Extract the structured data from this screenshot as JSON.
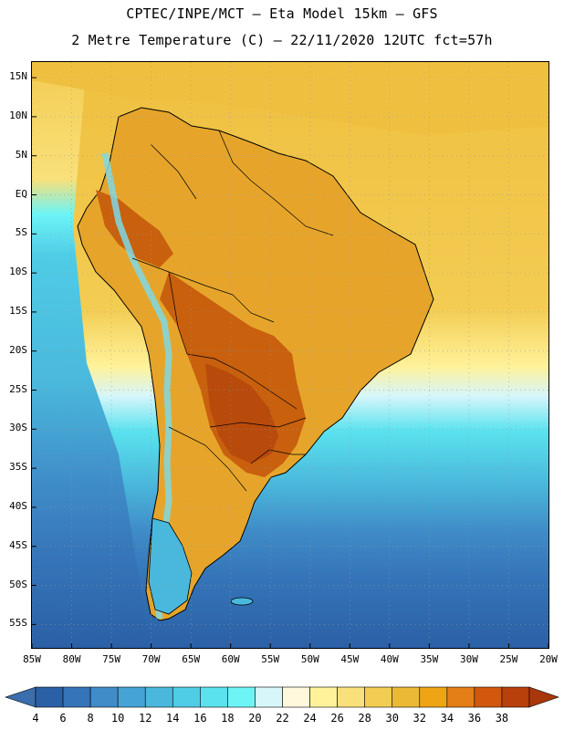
{
  "header": {
    "line1": "CPTEC/INPE/MCT –  Eta Model 15km – GFS",
    "line2": "2 Metre Temperature (C) – 22/11/2020 12UTC fct=57h"
  },
  "map": {
    "lon_range": [
      -85,
      -20
    ],
    "lat_range": [
      -58,
      17
    ],
    "lat_labels": [
      "15N",
      "10N",
      "5N",
      "EQ",
      "5S",
      "10S",
      "15S",
      "20S",
      "25S",
      "30S",
      "35S",
      "40S",
      "45S",
      "50S",
      "55S"
    ],
    "lat_values": [
      15,
      10,
      5,
      0,
      -5,
      -10,
      -15,
      -20,
      -25,
      -30,
      -35,
      -40,
      -45,
      -50,
      -55
    ],
    "lon_labels": [
      "85W",
      "80W",
      "75W",
      "70W",
      "65W",
      "60W",
      "55W",
      "50W",
      "45W",
      "40W",
      "35W",
      "30W",
      "25W",
      "20W"
    ],
    "lon_values": [
      -85,
      -80,
      -75,
      -70,
      -65,
      -60,
      -55,
      -50,
      -45,
      -40,
      -35,
      -30,
      -25,
      -20
    ],
    "colors": {
      "ocean_cold": "#2a6fb0",
      "ocean_mid": "#4cc4dc",
      "ocean_warm": "#e8b838",
      "land_hot": "#b84a0c",
      "land_warm": "#e6a52a",
      "andes": "#7fd8e4",
      "coast": "#000000"
    }
  },
  "colorbar": {
    "labels": [
      "4",
      "6",
      "8",
      "10",
      "12",
      "14",
      "16",
      "18",
      "20",
      "22",
      "24",
      "26",
      "28",
      "30",
      "32",
      "34",
      "36",
      "38"
    ],
    "colors": [
      "#2b60a6",
      "#3574b8",
      "#3f8cc8",
      "#45a4d4",
      "#4ab8dc",
      "#4fcce6",
      "#5ae2ee",
      "#6cf4f6",
      "#d6f6fa",
      "#fff8dc",
      "#fff29a",
      "#f9e07a",
      "#f3cc52",
      "#ecb936",
      "#eea414",
      "#e47e16",
      "#d2580e",
      "#b8400a"
    ]
  }
}
